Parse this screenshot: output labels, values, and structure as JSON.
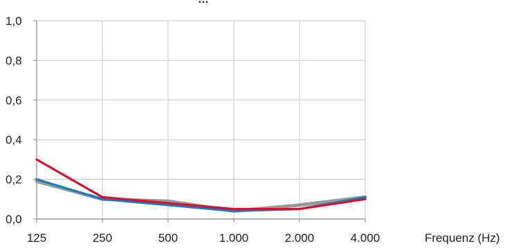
{
  "chart_data": {
    "type": "line",
    "title": "…",
    "categories": [
      "125",
      "250",
      "500",
      "1.000",
      "2.000",
      "4.000"
    ],
    "xlabel": "Frequenz (Hz)",
    "ylabel": "",
    "yticks": [
      "0,0",
      "0,2",
      "0,4",
      "0,6",
      "0,8",
      "1,0"
    ],
    "ylim": [
      0,
      1
    ],
    "grid": true,
    "legend": "none",
    "series": [
      {
        "values": [
          0.19,
          0.1,
          0.09,
          0.04,
          0.07,
          0.11
        ],
        "color": "#999999"
      },
      {
        "values": [
          0.2,
          0.1,
          0.07,
          0.04,
          0.05,
          0.11
        ],
        "color": "#1a7abf"
      },
      {
        "values": [
          0.3,
          0.11,
          0.08,
          0.05,
          0.05,
          0.1
        ],
        "color": "#d9112b"
      }
    ]
  }
}
